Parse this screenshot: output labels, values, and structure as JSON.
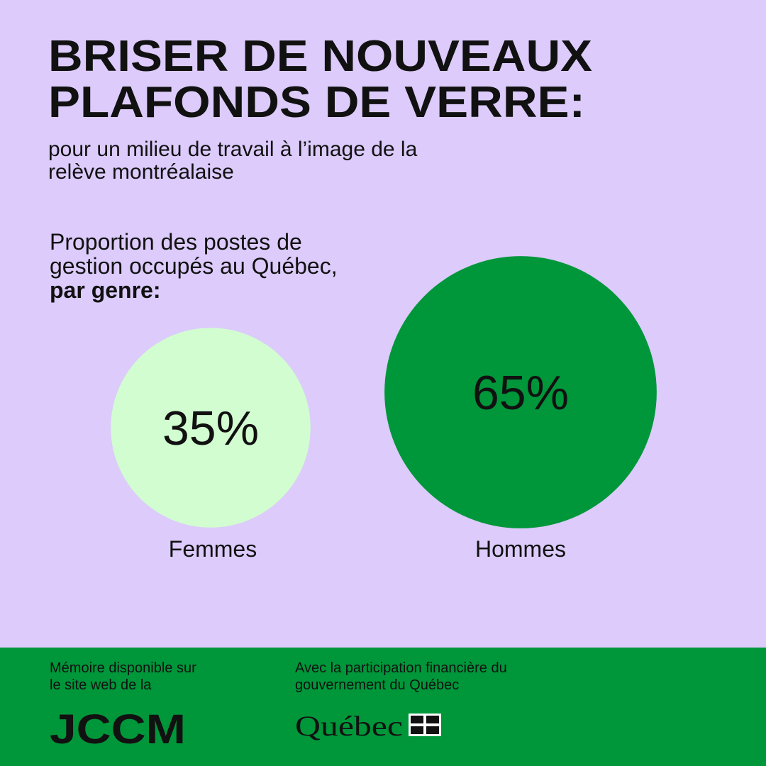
{
  "chart_data": {
    "type": "bubble",
    "title_lines": [
      "BRISER DE NOUVEAUX",
      "PLAFONDS DE VERRE:"
    ],
    "subtitle_lines": [
      "pour un milieu de travail à  l’image de la",
      "relève montréalaise"
    ],
    "chart_title_lines": [
      "Proportion des postes de",
      "gestion occupés au Québec,"
    ],
    "chart_title_bold": "par genre:",
    "categories": [
      "Femmes",
      "Hommes"
    ],
    "values": [
      35,
      65
    ],
    "value_labels": [
      "35%",
      "65%"
    ],
    "colors": [
      "#d2fdd0",
      "#00963a"
    ]
  },
  "footer": {
    "left_lines": [
      "Mémoire disponible sur",
      "le site web de la"
    ],
    "left_logo": "JCCM",
    "right_lines": [
      "Avec la participation financière du",
      "gouvernement du Québec"
    ],
    "right_logo": "Québec"
  }
}
